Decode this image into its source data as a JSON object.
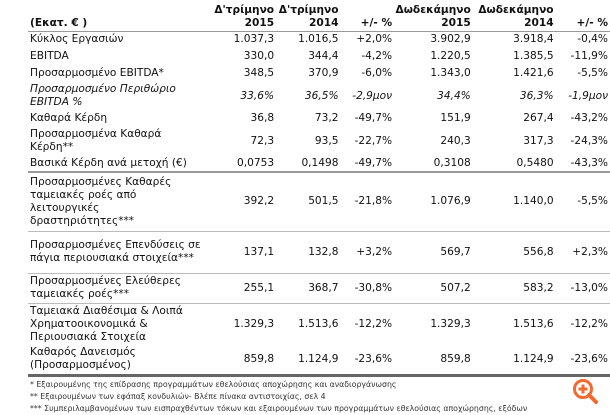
{
  "header": {
    "unit": "(Εκατ. € )",
    "cols": [
      {
        "line1": "Δ'τρίμηνο",
        "line2": "2015"
      },
      {
        "line1": "Δ'τρίμηνο",
        "line2": "2014"
      },
      {
        "line1": "",
        "line2": "+/- %"
      },
      {
        "line1": "Δωδεκάμηνο",
        "line2": "2015"
      },
      {
        "line1": "Δωδεκάμηνο",
        "line2": "2014"
      },
      {
        "line1": "",
        "line2": "+/- %"
      }
    ]
  },
  "rows": [
    {
      "label": "Κύκλος Εργασιών",
      "v": [
        "1.037,3",
        "1.016,5",
        "+2,0%",
        "3.902,9",
        "3.918,4",
        "-0,4%"
      ]
    },
    {
      "label": "EBITDA",
      "v": [
        "330,0",
        "344,4",
        "-4,2%",
        "1.220,5",
        "1.385,5",
        "-11,9%"
      ]
    },
    {
      "label": "Προσαρμοσμένο EBITDA*",
      "v": [
        "348,5",
        "370,9",
        "-6,0%",
        "1.343,0",
        "1.421,6",
        "-5,5%"
      ]
    },
    {
      "label": "Προσαρμοσμένο Περιθώριο EBITDA %",
      "v": [
        "33,6%",
        "36,5%",
        "-2,9μον",
        "34,4%",
        "36,3%",
        "-1,9μον"
      ]
    },
    {
      "label": "Καθαρά Κέρδη",
      "v": [
        "36,8",
        "73,2",
        "-49,7%",
        "151,9",
        "267,4",
        "-43,2%"
      ]
    },
    {
      "label": "Προσαρμοσμένα Καθαρά Κέρδη**",
      "v": [
        "72,3",
        "93,5",
        "-22,7%",
        "240,3",
        "317,3",
        "-24,3%"
      ]
    },
    {
      "label": "Βασικά Κέρδη ανά μετοχή (€)",
      "v": [
        "0,0753",
        "0,1498",
        "-49,7%",
        "0,3108",
        "0,5480",
        "-43,3%"
      ]
    },
    {
      "label": "Προσαρμοσμένες Καθαρές ταμειακές ροές από λειτουργικές δραστηριότητες***",
      "v": [
        "392,2",
        "501,5",
        "-21,8%",
        "1.076,9",
        "1.140,0",
        "-5,5%"
      ]
    },
    {
      "label": "Προσαρμοσμένες Επενδύσεις σε πάγια περιουσιακά στοιχεία***",
      "v": [
        "137,1",
        "132,8",
        "+3,2%",
        "569,7",
        "556,8",
        "+2,3%"
      ]
    },
    {
      "label": "Προσαρμοσμένες Ελεύθερες ταμειακές ροές***",
      "v": [
        "255,1",
        "368,7",
        "-30,8%",
        "507,2",
        "583,2",
        "-13,0%"
      ]
    },
    {
      "label": "Ταμειακά Διαθέσιμα & Λοιπά Χρηματοοικονομικά & Περιουσιακά Στοιχεία",
      "v": [
        "1.329,3",
        "1.513,6",
        "-12,2%",
        "1.329,3",
        "1.513,6",
        "-12,2%"
      ]
    },
    {
      "label": "Καθαρός Δανεισμός (Προσαρμοσμένος)",
      "v": [
        "859,8",
        "1.124,9",
        "-23,6%",
        "859,8",
        "1.124,9",
        "-23,6%"
      ]
    }
  ],
  "footnotes": [
    "* Εξαιρουμένης της επίδρασης προγραμμάτων εθελούσιας αποχώρησης και αναδιοργάνωσης",
    "** Εξαιρουμένων των εφάπαξ κονδυλιών- Βλέπε πίνακα αντιστοιχίας, σελ 4",
    "*** Συμπεριλαμβανομένων των εισπραχθέντων τόκων και εξαιρουμένων των προγραμμάτων εθελούσιας αποχώρησης, εξόδων"
  ],
  "colors": {
    "zoom_icon": "#f26a2e"
  },
  "icons": {
    "zoom": "zoom-in-icon"
  }
}
